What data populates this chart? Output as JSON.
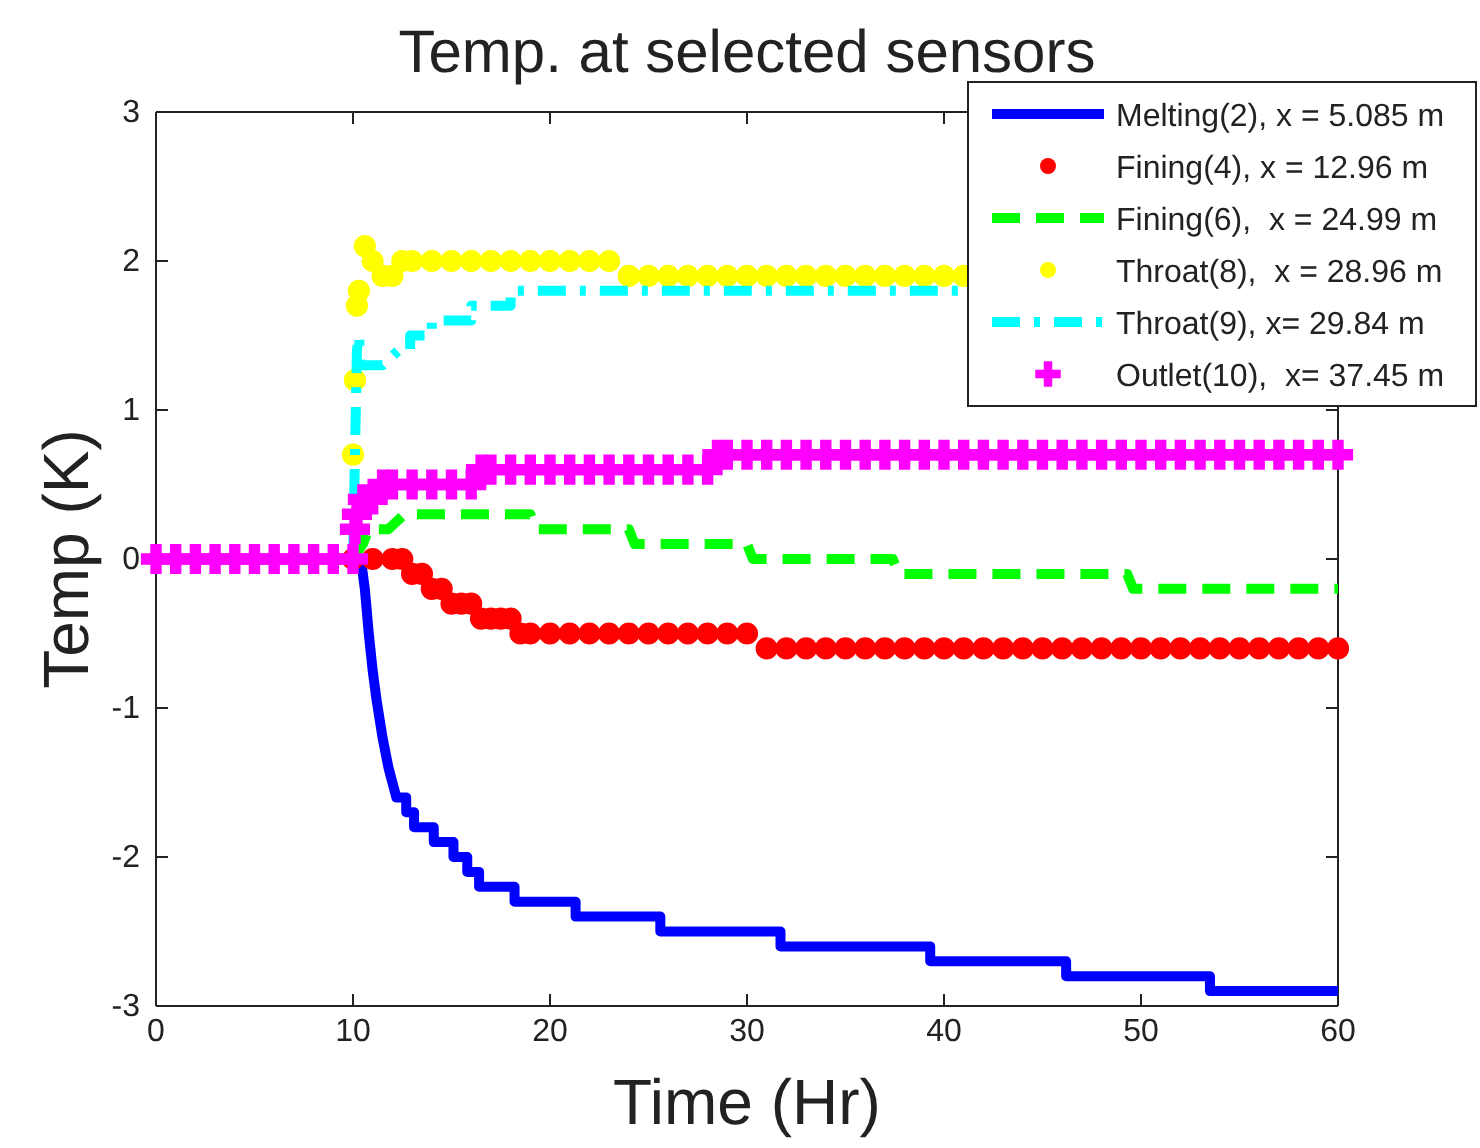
{
  "chart_data": {
    "type": "line",
    "title": "Temp. at selected sensors",
    "xlabel": "Time (Hr)",
    "ylabel": "Temp (K)",
    "xlim": [
      0,
      60
    ],
    "xticks": [
      0,
      10,
      20,
      30,
      40,
      50,
      60
    ],
    "ylim": [
      -3,
      3
    ],
    "yticks": [
      -3,
      -2,
      -1,
      0,
      1,
      2,
      3
    ],
    "grid": false,
    "legend": "top right",
    "series": [
      {
        "name": "Melting(2), x = 5.085 m",
        "color": "#0000ff",
        "line_style": "solid",
        "marker": "none",
        "x": [
          10,
          10.4,
          10.6,
          10.8,
          11.0,
          11.2,
          11.5,
          11.8,
          12.2,
          12.7,
          12.7,
          13.1,
          13.1,
          14.1,
          14.1,
          15.1,
          15.1,
          15.8,
          15.8,
          16.4,
          16.4,
          18.2,
          18.2,
          21.3,
          21.3,
          25.6,
          25.6,
          31.7,
          31.7,
          39.3,
          39.3,
          46.2,
          46.2,
          53.5,
          53.5,
          60
        ],
        "values": [
          0,
          0,
          -0.2,
          -0.5,
          -0.75,
          -0.95,
          -1.2,
          -1.4,
          -1.6,
          -1.6,
          -1.7,
          -1.7,
          -1.8,
          -1.8,
          -1.9,
          -1.9,
          -2.0,
          -2.0,
          -2.1,
          -2.1,
          -2.2,
          -2.2,
          -2.3,
          -2.3,
          -2.4,
          -2.4,
          -2.5,
          -2.5,
          -2.6,
          -2.6,
          -2.7,
          -2.7,
          -2.8,
          -2.8,
          -2.9,
          -2.9
        ]
      },
      {
        "name": "Fining(4), x = 12.96 m",
        "color": "#ff0000",
        "type": "scatter",
        "marker": "circle",
        "x": [
          10,
          11,
          12,
          12.5,
          13,
          13.5,
          14,
          14.5,
          15,
          15.5,
          16,
          16.5,
          17,
          17.5,
          18,
          18.5,
          19,
          20,
          21,
          22,
          23,
          24,
          25,
          26,
          27,
          28,
          29,
          30,
          31,
          32,
          33,
          34,
          35,
          36,
          37,
          38,
          39,
          40,
          41,
          42,
          43,
          44,
          45,
          46,
          47,
          48,
          49,
          50,
          51,
          52,
          53,
          54,
          55,
          56,
          57,
          58,
          59,
          60
        ],
        "values": [
          0,
          0,
          0,
          0,
          -0.1,
          -0.1,
          -0.2,
          -0.2,
          -0.3,
          -0.3,
          -0.3,
          -0.4,
          -0.4,
          -0.4,
          -0.4,
          -0.5,
          -0.5,
          -0.5,
          -0.5,
          -0.5,
          -0.5,
          -0.5,
          -0.5,
          -0.5,
          -0.5,
          -0.5,
          -0.5,
          -0.5,
          -0.6,
          -0.6,
          -0.6,
          -0.6,
          -0.6,
          -0.6,
          -0.6,
          -0.6,
          -0.6,
          -0.6,
          -0.6,
          -0.6,
          -0.6,
          -0.6,
          -0.6,
          -0.6,
          -0.6,
          -0.6,
          -0.6,
          -0.6,
          -0.6,
          -0.6,
          -0.6,
          -0.6,
          -0.6,
          -0.6,
          -0.6,
          -0.6,
          -0.6,
          -0.6
        ]
      },
      {
        "name": "Fining(6),  x = 24.99 m",
        "color": "#00ff00",
        "line_style": "dashed",
        "marker": "none",
        "x": [
          10,
          10.5,
          10.8,
          11.8,
          12.6,
          19,
          19.3,
          24,
          24.3,
          30,
          30.3,
          37.4,
          37.7,
          49.3,
          49.6,
          60
        ],
        "values": [
          0,
          0.1,
          0.2,
          0.2,
          0.3,
          0.3,
          0.2,
          0.2,
          0.1,
          0.1,
          0,
          0,
          -0.1,
          -0.1,
          -0.2,
          -0.2
        ]
      },
      {
        "name": "Throat(8),  x = 28.96 m",
        "color": "#ffff00",
        "type": "scatter",
        "marker": "circle",
        "x": [
          10,
          10.1,
          10.2,
          10.3,
          10.6,
          11,
          11.5,
          12,
          12.5,
          13,
          14,
          15,
          16,
          17,
          18,
          19,
          20,
          21,
          22,
          23,
          24,
          25,
          26,
          27,
          28,
          29,
          30,
          31,
          32,
          33,
          34,
          35,
          36,
          37,
          38,
          39,
          40,
          41
        ],
        "values": [
          0.7,
          1.2,
          1.7,
          1.8,
          2.1,
          2.0,
          1.9,
          1.9,
          2.0,
          2.0,
          2.0,
          2.0,
          2.0,
          2.0,
          2.0,
          2.0,
          2.0,
          2.0,
          2.0,
          2.0,
          1.9,
          1.9,
          1.9,
          1.9,
          1.9,
          1.9,
          1.9,
          1.9,
          1.9,
          1.9,
          1.9,
          1.9,
          1.9,
          1.9,
          1.9,
          1.9,
          1.9,
          1.9
        ]
      },
      {
        "name": "Throat(9), x= 29.84 m",
        "color": "#00ffff",
        "line_style": "dashdot",
        "marker": "none",
        "x": [
          10,
          10.1,
          10.2,
          10.3,
          10.4,
          11.5,
          12.3,
          12.9,
          12.9,
          14,
          14,
          16,
          16,
          18,
          18,
          41
        ],
        "values": [
          0,
          0.7,
          1.4,
          1.5,
          1.3,
          1.3,
          1.4,
          1.4,
          1.5,
          1.5,
          1.6,
          1.6,
          1.7,
          1.7,
          1.8,
          1.8
        ]
      },
      {
        "name": "Outlet(10),  x= 37.45 m",
        "color": "#ff00ff",
        "type": "scatter",
        "marker": "cross",
        "x": [
          0,
          1,
          2,
          3,
          4,
          5,
          6,
          7,
          8,
          9,
          10,
          10.1,
          10.2,
          10.5,
          11,
          11.5,
          12,
          13,
          14,
          15,
          16,
          16.5,
          17,
          18,
          19,
          20,
          21,
          22,
          23,
          24,
          25,
          26,
          27,
          28,
          28.5,
          29,
          30,
          31,
          32,
          33,
          34,
          35,
          36,
          37,
          38,
          39,
          40,
          41,
          42,
          43,
          44,
          45,
          46,
          47,
          48,
          49,
          50,
          51,
          52,
          53,
          54,
          55,
          56,
          57,
          58,
          59,
          60
        ],
        "values": [
          0,
          0,
          0,
          0,
          0,
          0,
          0,
          0,
          0,
          0,
          0,
          0.2,
          0.3,
          0.4,
          0.4,
          0.5,
          0.5,
          0.5,
          0.5,
          0.5,
          0.5,
          0.6,
          0.6,
          0.6,
          0.6,
          0.6,
          0.6,
          0.6,
          0.6,
          0.6,
          0.6,
          0.6,
          0.6,
          0.6,
          0.7,
          0.7,
          0.7,
          0.7,
          0.7,
          0.7,
          0.7,
          0.7,
          0.7,
          0.7,
          0.7,
          0.7,
          0.7,
          0.7,
          0.7,
          0.7,
          0.7,
          0.7,
          0.7,
          0.7,
          0.7,
          0.7,
          0.7,
          0.7,
          0.7,
          0.7,
          0.7,
          0.7,
          0.7,
          0.7,
          0.7,
          0.7,
          0.7
        ]
      }
    ]
  }
}
